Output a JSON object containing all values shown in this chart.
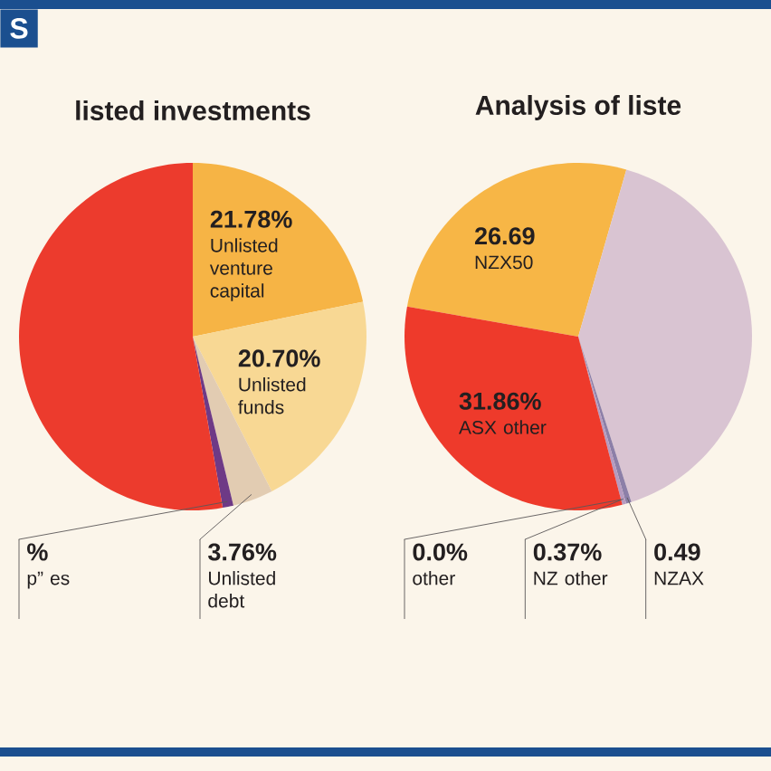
{
  "chart_data": [
    {
      "type": "pie",
      "title": "listed investments",
      "categories": [
        "Unlisted venture capital",
        "Unlisted funds",
        "Unlisted debt",
        "p” es",
        null
      ],
      "values": [
        21.78,
        20.7,
        3.76,
        1.0,
        52.76
      ],
      "colors": [
        "#f6b445",
        "#f8d894",
        "#e2ccb2",
        "#6e3a86",
        "#ec3b2d"
      ],
      "value_labels": [
        "21.78%",
        "20.70%",
        "3.76%",
        "%",
        null
      ],
      "annotations": [
        "S"
      ]
    },
    {
      "type": "pie",
      "title": "Analysis of liste",
      "categories": [
        "NZX50",
        null,
        "NZAX",
        "NZ other",
        "other",
        "ASX other"
      ],
      "values": [
        26.69,
        40.59,
        0.49,
        0.37,
        0.0,
        31.86
      ],
      "colors": [
        "#f7b646",
        "#d9c4d2",
        "#8c7fa8",
        "#b59bc0",
        "#5e4b82",
        "#ee3a2b"
      ],
      "value_labels": [
        "26.69",
        null,
        "0.49",
        "0.37%",
        "0.0%",
        "31.86%"
      ]
    }
  ]
}
